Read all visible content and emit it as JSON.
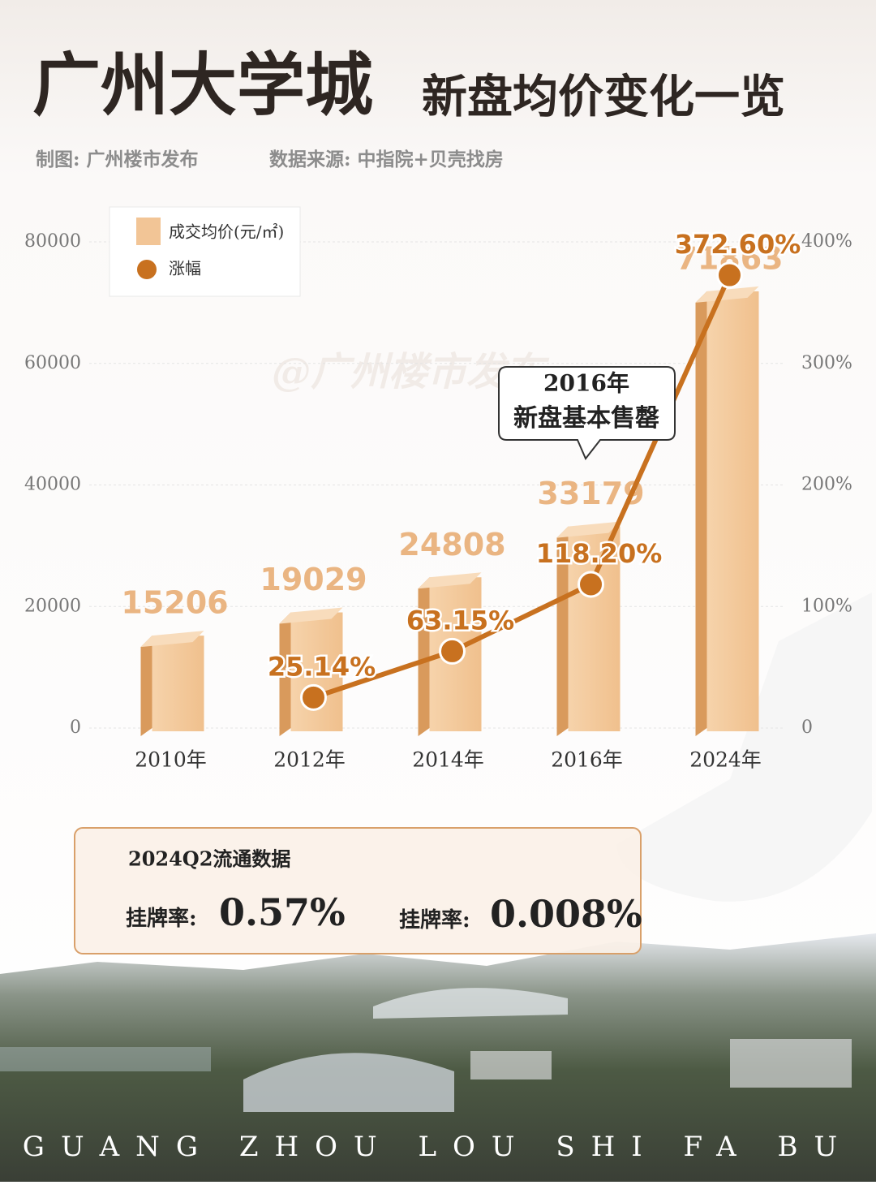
{
  "header": {
    "title": "广州大学城",
    "title_rest": "新盘均价变化一览",
    "credit": "制图: 广州楼市发布",
    "source": "数据来源: 中指院+贝壳找房"
  },
  "chart_data": {
    "type": "bar-line",
    "categories": [
      "2010年",
      "2012年",
      "2014年",
      "2016年",
      "2024年"
    ],
    "series": [
      {
        "name": "成交均价(元/㎡)",
        "type": "bar",
        "color": "#f2c596",
        "values": [
          15206,
          19029,
          24808,
          33179,
          71863
        ]
      },
      {
        "name": "涨幅",
        "type": "line",
        "axis": "y2",
        "color": "#c8711f",
        "values": [
          null,
          25.14,
          63.15,
          118.2,
          372.6
        ],
        "value_labels": [
          null,
          "25.14%",
          "63.15%",
          "118.20%",
          "372.60%"
        ]
      }
    ],
    "ylim": [
      0,
      80000
    ],
    "yticks": [
      0,
      20000,
      40000,
      60000,
      80000
    ],
    "y2lim": [
      0,
      400
    ],
    "y2ticks": [
      0,
      {
        "value": 100,
        "label": "100%"
      },
      {
        "value": 200,
        "label": "200%"
      },
      {
        "value": 300,
        "label": "300%"
      },
      {
        "value": 400,
        "label": "400%"
      }
    ],
    "grid": true,
    "legend": "upper left",
    "annotation": [
      "2016年",
      "新盘基本售罄"
    ],
    "watermark": "@广州楼市发布"
  },
  "stats": {
    "title": "2024Q2流通数据",
    "items": [
      {
        "label": "挂牌率:",
        "value": "0.57%"
      },
      {
        "label": "挂牌率:",
        "value": "0.008%"
      }
    ]
  },
  "footer": "GUANG ZHOU LOU SHI FA BU"
}
